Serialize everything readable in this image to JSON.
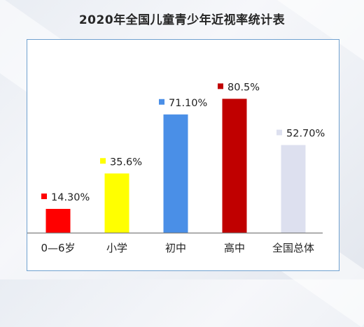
{
  "chart_data": {
    "type": "bar",
    "title": "2020年全国儿童青少年近视率统计表",
    "xlabel": "",
    "ylabel": "",
    "categories": [
      "0—6岁",
      "小学",
      "初中",
      "高中",
      "全国总体"
    ],
    "values": [
      14.3,
      35.6,
      71.1,
      80.5,
      52.7
    ],
    "data_labels": [
      "14.30%",
      "35.6%",
      "71.10%",
      "80.5%",
      "52.70%"
    ],
    "bar_colors": [
      "#ff0000",
      "#ffff00",
      "#4a8fe7",
      "#c00000",
      "#dde0ef"
    ],
    "ylim": [
      0,
      100
    ],
    "grid": false,
    "legend": "none",
    "data_label_marker": "colored-square"
  }
}
